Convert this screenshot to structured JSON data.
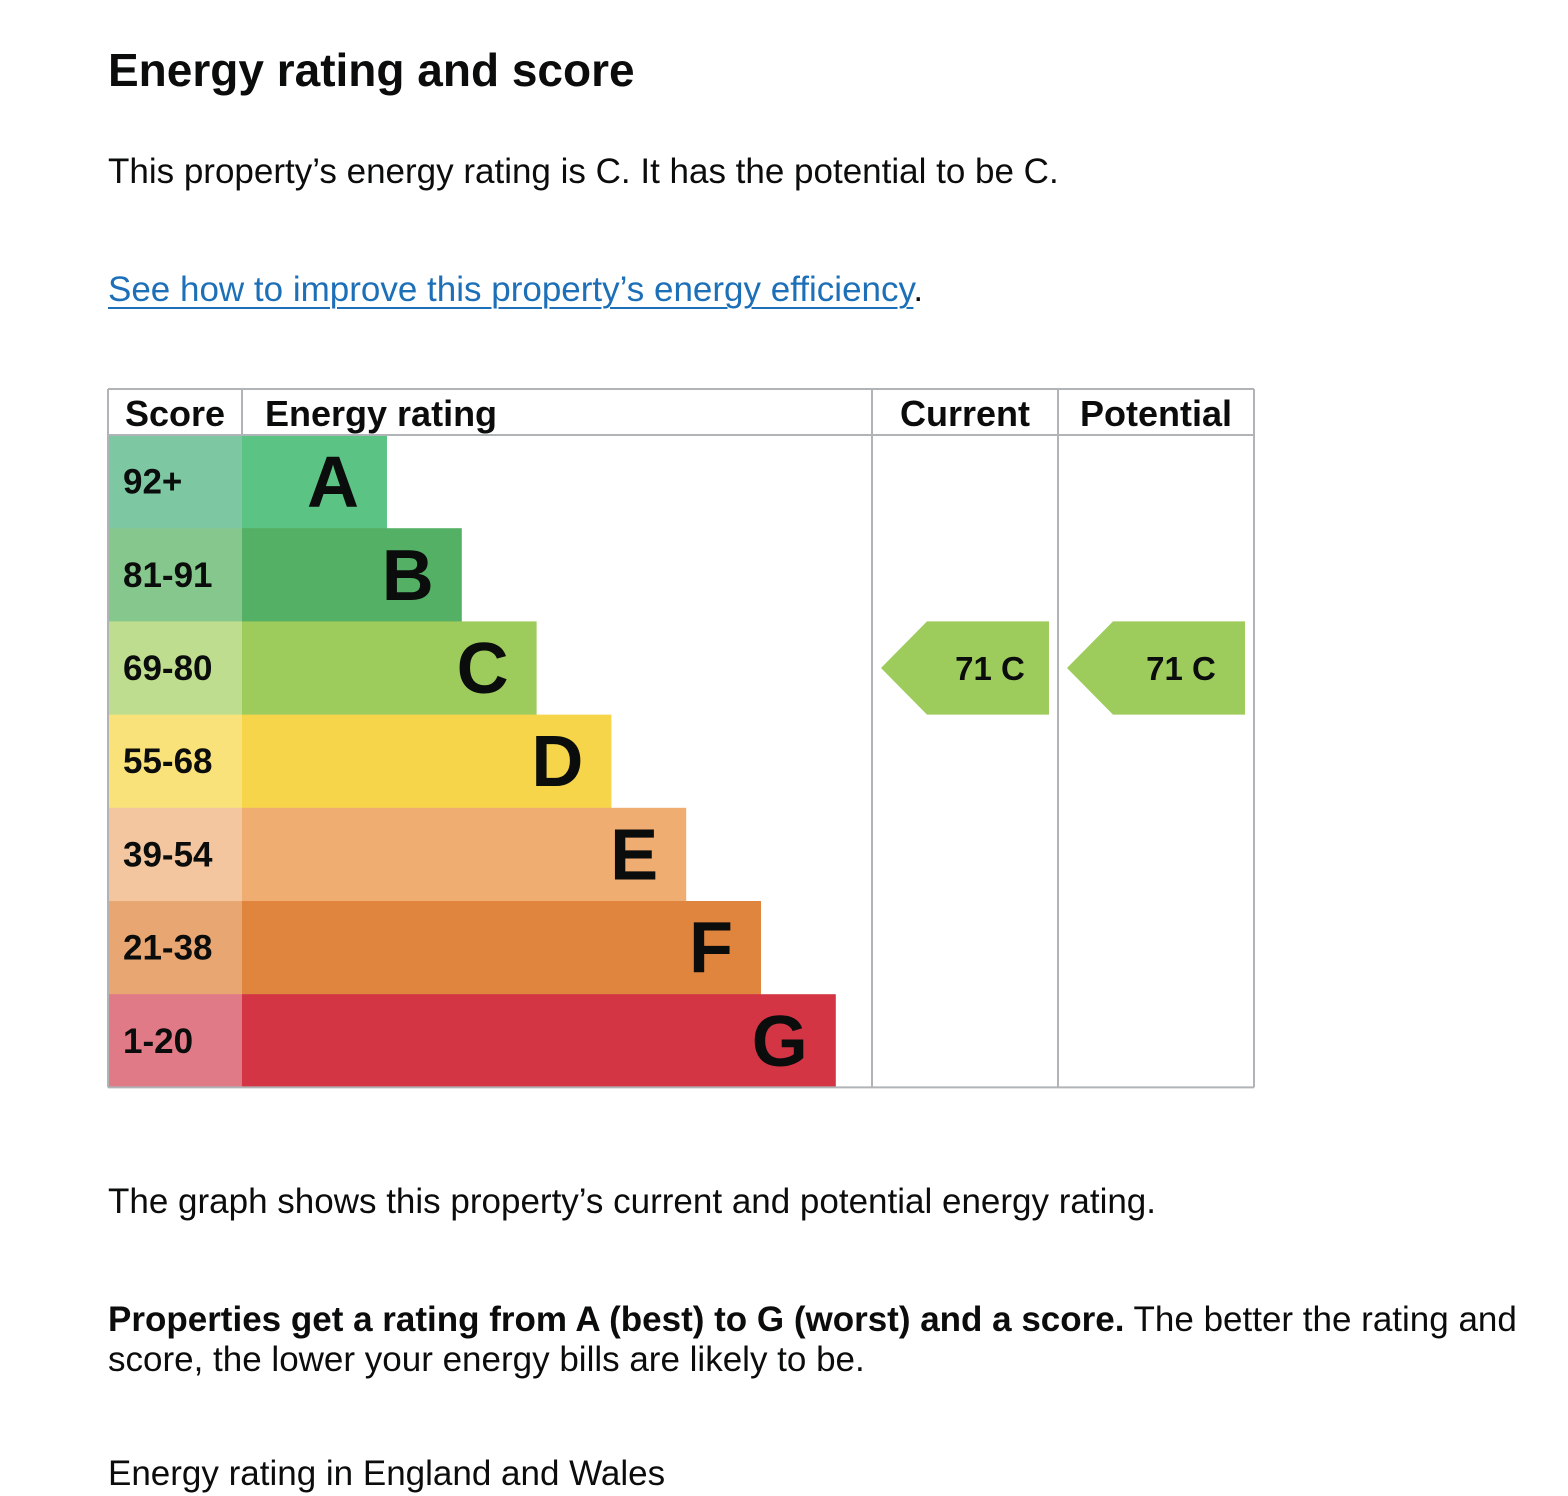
{
  "page": {
    "title": "Energy rating and score",
    "summary": "This property’s energy rating is C. It has the potential to be C.",
    "improve_link_text": "See how to improve this property’s energy efficiency",
    "improve_link_suffix": ".",
    "graph_caption": "The graph shows this property’s current and potential energy rating.",
    "explainer_bold": "Properties get a rating from A (best) to G (worst) and a score.",
    "explainer_rest": " The better the rating and score, the lower your energy bills are likely to be.",
    "cutoff_heading": "Energy rating in England and Wales"
  },
  "chart_data": {
    "type": "table",
    "columns": {
      "score": "Score",
      "rating": "Energy rating",
      "current": "Current",
      "potential": "Potential"
    },
    "bands": [
      {
        "letter": "A",
        "range": "92+",
        "color": "#5bc484",
        "score_bg": "#7dc8a3"
      },
      {
        "letter": "B",
        "range": "81-91",
        "color": "#54b064",
        "score_bg": "#86c78e"
      },
      {
        "letter": "C",
        "range": "69-80",
        "color": "#9dcb5c",
        "score_bg": "#bfdd8e"
      },
      {
        "letter": "D",
        "range": "55-68",
        "color": "#f6d54b",
        "score_bg": "#f9e27a"
      },
      {
        "letter": "E",
        "range": "39-54",
        "color": "#efad72",
        "score_bg": "#f4c69f"
      },
      {
        "letter": "F",
        "range": "21-38",
        "color": "#e0853d",
        "score_bg": "#e8a772"
      },
      {
        "letter": "G",
        "range": "1-20",
        "color": "#d43545",
        "score_bg": "#e07a86"
      }
    ],
    "current": {
      "score": 71,
      "band": "C"
    },
    "potential": {
      "score": 71,
      "band": "C"
    }
  }
}
